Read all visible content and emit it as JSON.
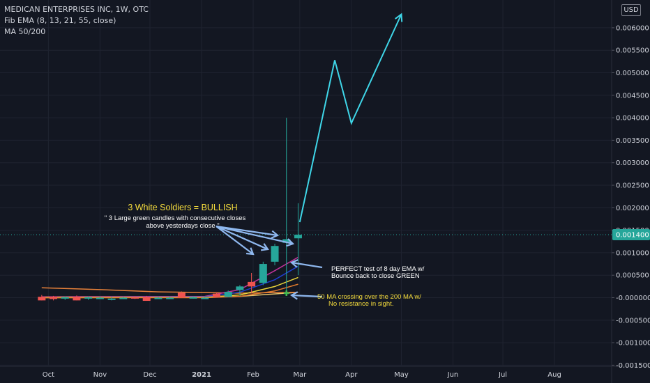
{
  "header": {
    "symbol_line": "MEDICAN ENTERPRISES INC, 1W, OTC",
    "ema_line": "Fib EMA (8, 13, 21, 55, close)",
    "ma_line": "MA 50/200"
  },
  "currency_button": "USD",
  "colors": {
    "background": "#131722",
    "grid": "#1f2330",
    "axis_text": "#d1d4dc",
    "up_candle": "#26a69a",
    "down_candle": "#ef5350",
    "projection_line": "#3fd6e8",
    "annotation_arrow": "#8fb8ef",
    "annotation_text_yellow": "#f5dc3c",
    "price_tag": "#26a69a"
  },
  "chart_data": {
    "type": "candlestick",
    "x_labels": [
      "Oct",
      "Nov",
      "Dec",
      "2021",
      "Feb",
      "Mar",
      "Apr",
      "May",
      "Jun",
      "Jul",
      "Aug"
    ],
    "y_ticks": [
      "0.006000",
      "0.005500",
      "0.005000",
      "0.004500",
      "0.004000",
      "0.003500",
      "0.003000",
      "0.002500",
      "0.002000",
      "0.001500",
      "0.001000",
      "0.000500",
      "-0.000000",
      "-0.000500",
      "-0.001000",
      "-0.001500"
    ],
    "ylim": [
      -0.00155,
      0.0066
    ],
    "current_price_label": "0.001400",
    "current_price": 0.0014,
    "candles": [
      {
        "date": "2020-09-27",
        "open": 2e-05,
        "high": 6e-05,
        "low": -6e-05,
        "close": -6e-05
      },
      {
        "date": "2020-10-04",
        "open": 2e-05,
        "high": 4e-05,
        "low": -6e-05,
        "close": -3e-05
      },
      {
        "date": "2020-10-11",
        "open": -2e-05,
        "high": 3e-05,
        "low": -5e-05,
        "close": 1e-05
      },
      {
        "date": "2020-10-18",
        "open": 2e-05,
        "high": 5e-05,
        "low": -6e-05,
        "close": -6e-05
      },
      {
        "date": "2020-10-25",
        "open": -2e-05,
        "high": 3e-05,
        "low": -5e-05,
        "close": 1e-05
      },
      {
        "date": "2020-11-01",
        "open": 0.0,
        "high": 3e-05,
        "low": -3e-05,
        "close": 0.0
      },
      {
        "date": "2020-11-08",
        "open": -4e-05,
        "high": 2e-05,
        "low": -6e-05,
        "close": -2e-05
      },
      {
        "date": "2020-11-15",
        "open": 0.0,
        "high": 2e-05,
        "low": -3e-05,
        "close": 0.0
      },
      {
        "date": "2020-11-22",
        "open": 1e-05,
        "high": 3e-05,
        "low": -3e-05,
        "close": 0.0
      },
      {
        "date": "2020-11-29",
        "open": 2e-05,
        "high": 4e-05,
        "low": -7e-05,
        "close": -7e-05
      },
      {
        "date": "2020-12-06",
        "open": 0.0,
        "high": 2e-05,
        "low": -2e-05,
        "close": 0.0
      },
      {
        "date": "2020-12-13",
        "open": 0.0,
        "high": 2e-05,
        "low": -2e-05,
        "close": 0.0
      },
      {
        "date": "2020-12-20",
        "open": 0.00011,
        "high": 0.00014,
        "low": 0.0,
        "close": 0.0
      },
      {
        "date": "2020-12-27",
        "open": 0.0,
        "high": 3e-05,
        "low": -2e-05,
        "close": 1e-05
      },
      {
        "date": "2021-01-03",
        "open": 0.0,
        "high": 2e-05,
        "low": -2e-05,
        "close": 0.0
      },
      {
        "date": "2021-01-10",
        "open": 9e-05,
        "high": 0.00012,
        "low": 0.0,
        "close": 1e-05
      },
      {
        "date": "2021-01-17",
        "open": 2e-05,
        "high": 0.00016,
        "low": 1e-05,
        "close": 0.00013
      },
      {
        "date": "2021-01-24",
        "open": 0.00017,
        "high": 0.00028,
        "low": 5e-05,
        "close": 0.00025
      },
      {
        "date": "2021-01-31",
        "open": 0.00035,
        "high": 0.00055,
        "low": 0.0001,
        "close": 0.00025
      },
      {
        "date": "2021-02-07",
        "open": 0.00033,
        "high": 0.0008,
        "low": 0.00028,
        "close": 0.00075
      },
      {
        "date": "2021-02-14",
        "open": 0.0008,
        "high": 0.0012,
        "low": 0.00072,
        "close": 0.00115
      },
      {
        "date": "2021-02-21",
        "open": 0.00122,
        "high": 0.004,
        "low": 5e-05,
        "close": 0.0013
      },
      {
        "date": "2021-02-28",
        "open": 0.00132,
        "high": 0.0021,
        "low": 0.0005,
        "close": 0.0014
      }
    ],
    "ema_lines": [
      {
        "color": "#c3349b",
        "points": [
          [
            "2020-09-27",
            2e-05
          ],
          [
            "2021-01-03",
            3e-05
          ],
          [
            "2021-01-24",
            0.00018
          ],
          [
            "2021-02-14",
            0.0006
          ],
          [
            "2021-02-28",
            0.0009
          ]
        ]
      },
      {
        "color": "#1e3fd0",
        "points": [
          [
            "2020-09-27",
            1e-05
          ],
          [
            "2021-01-03",
            2e-05
          ],
          [
            "2021-01-24",
            0.00012
          ],
          [
            "2021-02-14",
            0.0004
          ],
          [
            "2021-02-28",
            0.0007
          ]
        ]
      },
      {
        "color": "#e9d43a",
        "points": [
          [
            "2020-09-27",
            1e-05
          ],
          [
            "2021-01-03",
            1e-05
          ],
          [
            "2021-01-24",
            6e-05
          ],
          [
            "2021-02-14",
            0.00025
          ],
          [
            "2021-02-28",
            0.00045
          ]
        ]
      },
      {
        "color": "#e07a2c",
        "points": [
          [
            "2020-09-27",
            0.0
          ],
          [
            "2021-01-03",
            0.0
          ],
          [
            "2021-01-24",
            3e-05
          ],
          [
            "2021-02-14",
            0.00015
          ],
          [
            "2021-02-28",
            0.0003
          ]
        ]
      }
    ],
    "ma_lines": [
      {
        "name": "MA 50",
        "color": "#e9c46a",
        "points": [
          [
            "2020-09-27",
            0.0
          ],
          [
            "2021-01-03",
            1e-05
          ],
          [
            "2021-01-24",
            3e-05
          ],
          [
            "2021-02-28",
            0.00012
          ]
        ]
      },
      {
        "name": "MA 200",
        "color": "#e9823a",
        "points": [
          [
            "2020-09-27",
            0.00022
          ],
          [
            "2020-11-01",
            0.00018
          ],
          [
            "2020-12-06",
            0.00013
          ],
          [
            "2021-01-24",
            0.0001
          ],
          [
            "2021-02-28",
            0.00012
          ]
        ]
      }
    ],
    "projection": [
      [
        "2021-03-01",
        0.00168
      ],
      [
        "2021-03-22",
        0.00528
      ],
      [
        "2021-04-01",
        0.00388
      ],
      [
        "2021-05-01",
        0.0063
      ]
    ]
  },
  "annotations": {
    "title": "3 White Soldiers = BULLISH",
    "subtitle_line1": "\" 3 Large green candles with consecutive closes",
    "subtitle_line2": "above yesterdays close \"",
    "ema_note_line1": "PERFECT test of 8 day EMA w/",
    "ema_note_line2": "Bounce back to close GREEN",
    "ma_note_line1": "50 MA crossing over the 200 MA w/",
    "ma_note_line2": "No resistance in sight."
  }
}
